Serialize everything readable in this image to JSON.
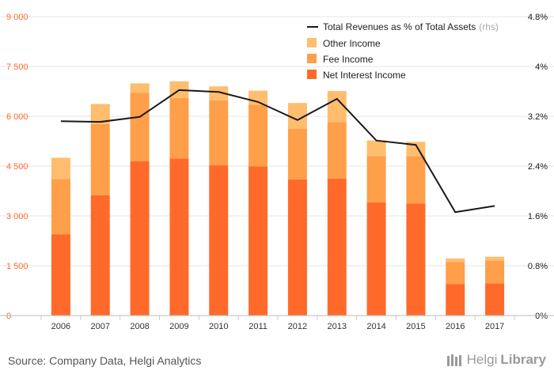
{
  "colors": {
    "net_interest": "#ff6a2b",
    "fee": "#ff9f4a",
    "other": "#ffbd6e",
    "line": "#1a1a1a",
    "left_axis_text": "#ff6a2b",
    "right_axis_text": "#1a1a1a",
    "grid": "#e6e6e6",
    "brand": "#9a9a9a"
  },
  "chart_data": {
    "type": "bar",
    "stacked": true,
    "categories": [
      "2006",
      "2007",
      "2008",
      "2009",
      "2010",
      "2011",
      "2012",
      "2013",
      "2014",
      "2015",
      "2016",
      "2017"
    ],
    "series": [
      {
        "name": "Net Interest Income",
        "values": [
          2450,
          3620,
          4650,
          4730,
          4530,
          4490,
          4100,
          4120,
          3410,
          3370,
          950,
          970
        ]
      },
      {
        "name": "Fee Income",
        "values": [
          1660,
          2150,
          2060,
          1820,
          1950,
          1860,
          1520,
          1700,
          1390,
          1430,
          660,
          690
        ]
      },
      {
        "name": "Other Income",
        "values": [
          640,
          600,
          280,
          500,
          420,
          420,
          780,
          940,
          470,
          430,
          110,
          110
        ]
      }
    ],
    "line_series": {
      "name": "Total Revenues as % of Total Assets",
      "suffix": "(rhs)",
      "axis": "right",
      "values": [
        3.12,
        3.11,
        3.19,
        3.62,
        3.59,
        3.43,
        3.14,
        3.48,
        2.81,
        2.74,
        1.66,
        1.76
      ]
    },
    "y_left": {
      "min": 0,
      "max": 9000,
      "ticks": [
        "0",
        "1 500",
        "3 000",
        "4 500",
        "6 000",
        "7 500",
        "9 000"
      ]
    },
    "y_right": {
      "min": 0,
      "max": 4.8,
      "ticks": [
        "0%",
        "0.8%",
        "1.6%",
        "2.4%",
        "3.2%",
        "4%",
        "4.8%"
      ]
    },
    "legend_position": "top-right",
    "grid": true
  },
  "footer": {
    "source": "Source: Company Data, Helgi Analytics",
    "brand_part1": "Helgi",
    "brand_part2": "Library"
  }
}
